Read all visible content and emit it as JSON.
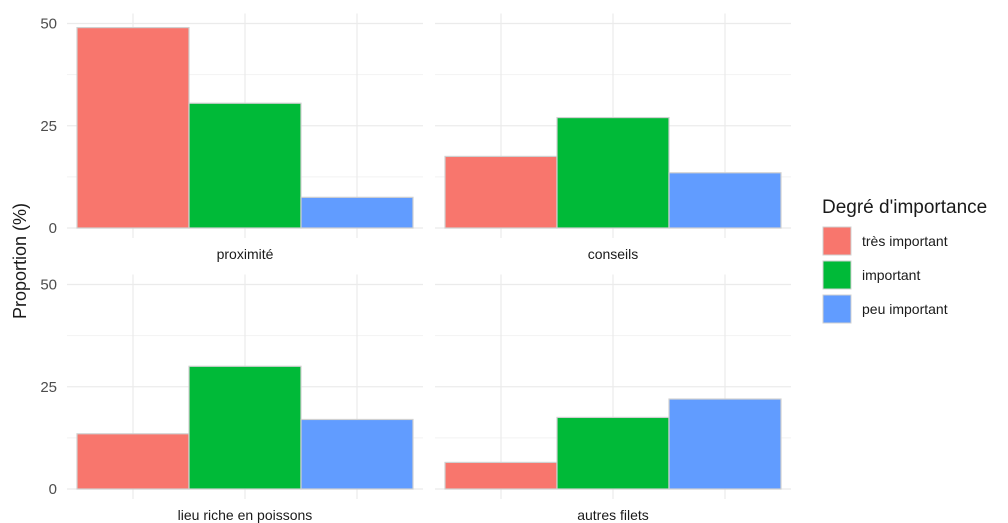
{
  "chart_data": {
    "type": "bar",
    "ylabel": "Proportion (%)",
    "ylim": [
      0,
      50
    ],
    "yticks": [
      0,
      25,
      50
    ],
    "grid": true,
    "legend": {
      "title": "Degré d'importance",
      "position": "right",
      "entries": [
        {
          "label": "très important",
          "color": "#F8766D"
        },
        {
          "label": "important",
          "color": "#00BA38"
        },
        {
          "label": "peu important",
          "color": "#619CFF"
        }
      ]
    },
    "facets": [
      {
        "title": "proximité",
        "values": [
          49,
          30.5,
          7.5
        ]
      },
      {
        "title": "conseils",
        "values": [
          17.5,
          27,
          13.5
        ]
      },
      {
        "title": "lieu riche en poissons",
        "values": [
          13.5,
          30,
          17
        ]
      },
      {
        "title": "autres filets",
        "values": [
          6.5,
          17.5,
          22
        ]
      }
    ]
  }
}
